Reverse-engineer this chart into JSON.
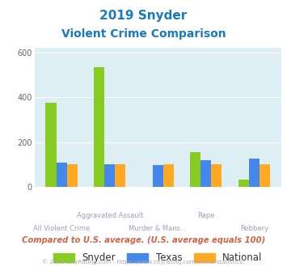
{
  "title_line1": "2019 Snyder",
  "title_line2": "Violent Crime Comparison",
  "title_color": "#1a7abf",
  "categories": [
    "All Violent Crime",
    "Aggravated Assault",
    "Murder & Mans...",
    "Rape",
    "Robbery"
  ],
  "snyder": [
    375,
    535,
    0,
    155,
    33
  ],
  "texas": [
    110,
    100,
    98,
    118,
    125
  ],
  "national": [
    100,
    100,
    100,
    100,
    100
  ],
  "snyder_color": "#88cc22",
  "texas_color": "#4488ee",
  "national_color": "#ffaa22",
  "bg_color": "#ddeef5",
  "ylim": [
    0,
    620
  ],
  "yticks": [
    0,
    200,
    400,
    600
  ],
  "xlabel_color": "#aa99bb",
  "footer_text": "Compared to U.S. average. (U.S. average equals 100)",
  "footer_color": "#cc6644",
  "credit_text": "© 2025 CityRating.com - https://www.cityrating.com/crime-statistics/",
  "credit_color": "#aaaaaa",
  "legend_labels": [
    "Snyder",
    "Texas",
    "National"
  ],
  "bar_width": 0.22
}
